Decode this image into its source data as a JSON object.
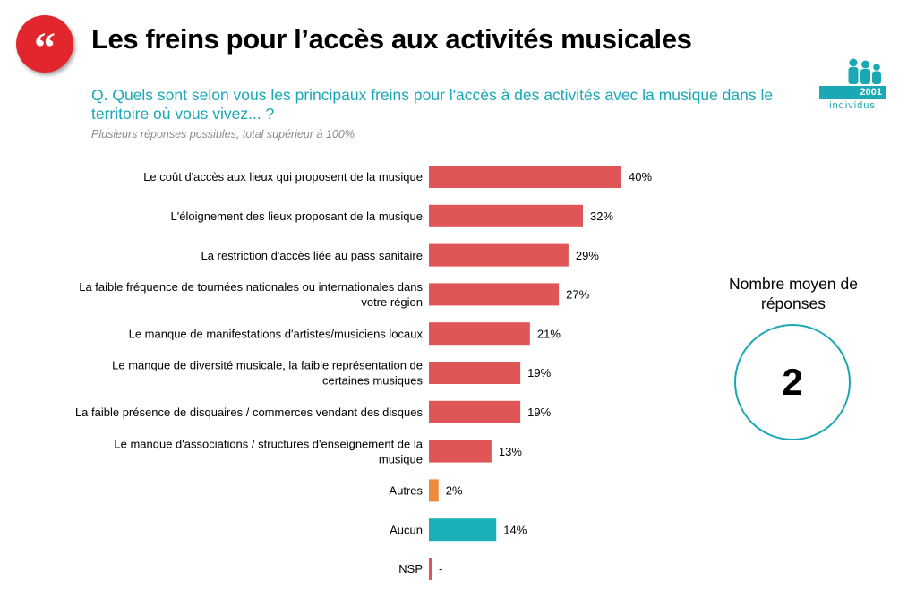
{
  "header": {
    "title": "Les freins pour l’accès aux activités musicales",
    "quote_icon": "quote-marks-icon",
    "brand_color": "#e1262d"
  },
  "question": {
    "text": "Q. Quels sont selon vous les principaux freins pour l'accès à des activités avec la musique dans le territoire où vous vivez... ?",
    "note": "Plusieurs réponses possibles, total supérieur à 100%"
  },
  "sample": {
    "count": "2001",
    "unit": "individus",
    "icon": "people-icon",
    "color": "#1aa8b5"
  },
  "average": {
    "label": "Nombre moyen de réponses",
    "value": "2"
  },
  "chart_data": {
    "type": "bar",
    "orientation": "horizontal",
    "categories": [
      "Le coût d'accès aux lieux qui proposent de la musique",
      "L'éloignement des lieux proposant de la musique",
      "La restriction d'accès liée au pass sanitaire",
      "La faible fréquence de tournées nationales ou internationales dans votre région",
      "Le manque de manifestations d'artistes/musiciens locaux",
      "Le manque de diversité musicale, la faible représentation de certaines musiques",
      "La faible présence de disquaires / commerces vendant des disques",
      "Le manque d'associations / structures d'enseignement de la musique",
      "Autres",
      "Aucun",
      "NSP"
    ],
    "category_lines": [
      [
        "Le coût d'accès aux lieux qui proposent de la musique"
      ],
      [
        "L'éloignement des lieux proposant de la musique"
      ],
      [
        "La restriction d'accès liée au pass sanitaire"
      ],
      [
        "La faible fréquence de tournées nationales ou internationales dans",
        "votre région"
      ],
      [
        "Le manque de manifestations d'artistes/musiciens locaux"
      ],
      [
        "Le manque de diversité musicale, la faible représentation de",
        "certaines musiques"
      ],
      [
        "La faible présence de disquaires / commerces vendant des disques"
      ],
      [
        "Le manque d'associations / structures d'enseignement de la",
        "musique"
      ],
      [
        "Autres"
      ],
      [
        "Aucun"
      ],
      [
        "NSP"
      ]
    ],
    "values": [
      40,
      32,
      29,
      27,
      21,
      19,
      19,
      13,
      2,
      14,
      null
    ],
    "value_labels": [
      "40%",
      "32%",
      "29%",
      "27%",
      "21%",
      "19%",
      "19%",
      "13%",
      "2%",
      "14%",
      "-"
    ],
    "colors": [
      "#e05555",
      "#e05555",
      "#e05555",
      "#e05555",
      "#e05555",
      "#e05555",
      "#e05555",
      "#e05555",
      "#ec8a3a",
      "#1ab0b8",
      "#e05555"
    ],
    "xlim": [
      0,
      40
    ],
    "grid": false,
    "legend": "none"
  }
}
